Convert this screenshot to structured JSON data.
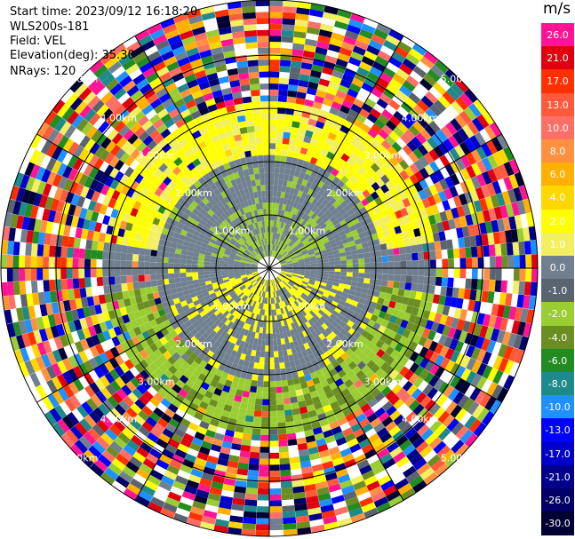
{
  "header": {
    "start_time": "Start time: 2023/09/12 16:18:20",
    "instrument": "WLS200s-181",
    "field": "Field: VEL",
    "elevation": "Elevation(deg): 35.30",
    "nrays": "NRays: 120"
  },
  "colorbar": {
    "unit": "m/s",
    "levels": [
      {
        "label": "26.0",
        "color": "#ff1493"
      },
      {
        "label": "21.0",
        "color": "#e00010"
      },
      {
        "label": "17.0",
        "color": "#ff3000"
      },
      {
        "label": "13.0",
        "color": "#ff5a3c"
      },
      {
        "label": "10.0",
        "color": "#ff6f66"
      },
      {
        "label": "8.0",
        "color": "#ff9040"
      },
      {
        "label": "6.0",
        "color": "#ffb000"
      },
      {
        "label": "4.0",
        "color": "#ffd700"
      },
      {
        "label": "2.0",
        "color": "#ffff00"
      },
      {
        "label": "1.0",
        "color": "#f2ef60"
      },
      {
        "label": "0.0",
        "color": "#708090"
      },
      {
        "label": "-1.0",
        "color": "#5a6470"
      },
      {
        "label": "-2.0",
        "color": "#9acd32"
      },
      {
        "label": "-4.0",
        "color": "#6b8e23"
      },
      {
        "label": "-6.0",
        "color": "#228b22"
      },
      {
        "label": "-8.0",
        "color": "#1e8a8a"
      },
      {
        "label": "-10.0",
        "color": "#1e90ff"
      },
      {
        "label": "-13.0",
        "color": "#0000ff"
      },
      {
        "label": "-17.0",
        "color": "#0000cd"
      },
      {
        "label": "-21.0",
        "color": "#00008b"
      },
      {
        "label": "-26.0",
        "color": "#000066"
      },
      {
        "label": "-30.0",
        "color": "#000033"
      }
    ]
  },
  "range_rings": {
    "labels": [
      "1.00km",
      "2.00km",
      "3.00km",
      "4.00km",
      "5.00km"
    ]
  },
  "display": {
    "n_rays": 120,
    "n_gates": 45
  }
}
